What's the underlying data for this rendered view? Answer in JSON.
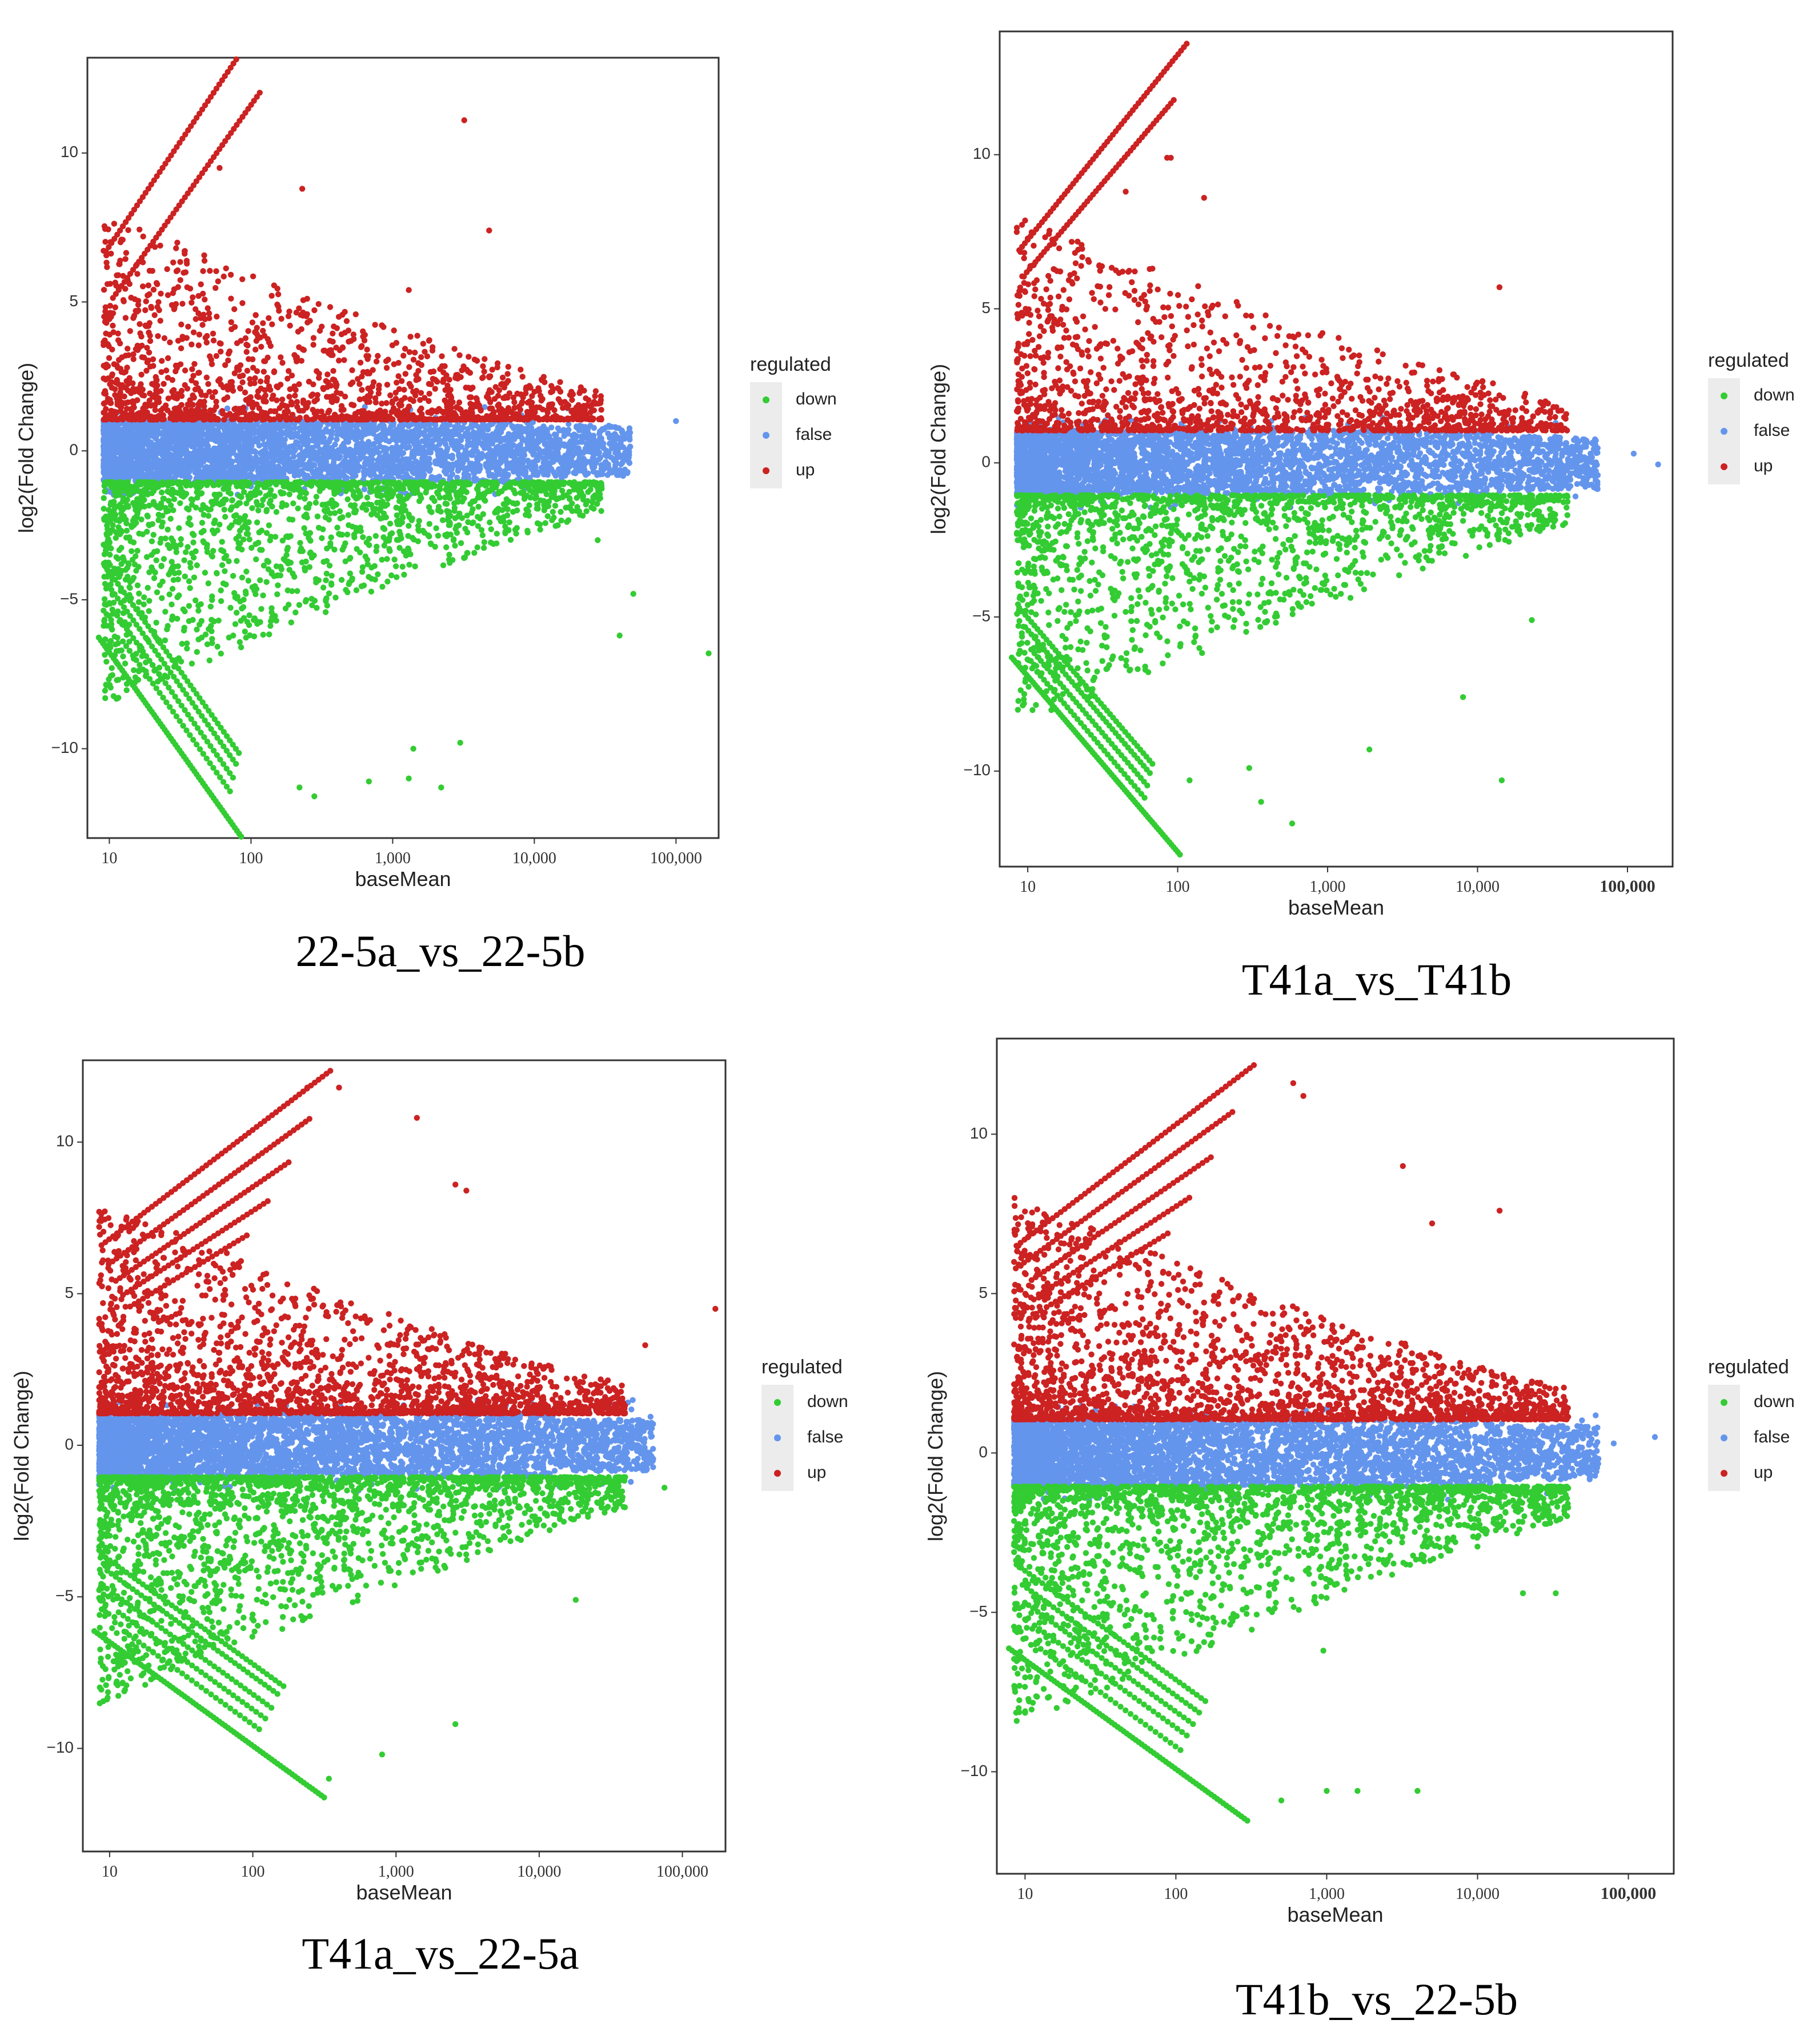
{
  "legend": {
    "title": "regulated",
    "items": [
      {
        "label": "down",
        "color": "#33cc33"
      },
      {
        "label": "false",
        "color": "#6495ed"
      },
      {
        "label": "up",
        "color": "#cc2222"
      }
    ]
  },
  "chart_data": [
    {
      "type": "scatter",
      "caption": "22-5a_vs_22-5b",
      "xlabel": "baseMean",
      "ylabel": "log2(Fold Change)",
      "x_scale": "log10",
      "xlim": [
        7,
        200000
      ],
      "ylim": [
        -13,
        13.2
      ],
      "xticks": [
        {
          "v": 10,
          "label": "10"
        },
        {
          "v": 100,
          "label": "100"
        },
        {
          "v": 1000,
          "label": "1,000"
        },
        {
          "v": 10000,
          "label": "10,000"
        },
        {
          "v": 100000,
          "label": "100,000"
        }
      ],
      "yticks": [
        {
          "v": 10,
          "label": "10"
        },
        {
          "v": 5,
          "label": "5"
        },
        {
          "v": 0,
          "label": "0"
        },
        {
          "v": -5,
          "label": "−5"
        },
        {
          "v": -10,
          "label": "−10"
        }
      ],
      "threshold": 1,
      "x_max_bulk": 30000,
      "upper_lines": [
        6.7,
        4.8
      ],
      "lower_lines": [
        -3.9,
        -4.4,
        -5.0,
        -5.6,
        -6.6
      ],
      "line_slope": 7,
      "line_x_end": 150,
      "outliers": [
        {
          "x": 3200,
          "y": 11.1,
          "g": "up"
        },
        {
          "x": 60,
          "y": 9.5,
          "g": "up"
        },
        {
          "x": 230,
          "y": 8.8,
          "g": "up"
        },
        {
          "x": 4800,
          "y": 7.4,
          "g": "up"
        },
        {
          "x": 1300,
          "y": 5.4,
          "g": "up"
        },
        {
          "x": 100000,
          "y": 1.0,
          "g": "false"
        },
        {
          "x": 170000,
          "y": -6.8,
          "g": "down"
        },
        {
          "x": 40000,
          "y": -6.2,
          "g": "down"
        },
        {
          "x": 50000,
          "y": -4.8,
          "g": "down"
        },
        {
          "x": 3000,
          "y": -9.8,
          "g": "down"
        },
        {
          "x": 2200,
          "y": -11.3,
          "g": "down"
        },
        {
          "x": 1300,
          "y": -11.0,
          "g": "down"
        },
        {
          "x": 280,
          "y": -11.6,
          "g": "down"
        },
        {
          "x": 220,
          "y": -11.3,
          "g": "down"
        },
        {
          "x": 680,
          "y": -11.1,
          "g": "down"
        },
        {
          "x": 1400,
          "y": -10.0,
          "g": "down"
        },
        {
          "x": 28000,
          "y": -3.0,
          "g": "down"
        }
      ],
      "counts": {
        "up": 1500,
        "false": 3800,
        "down": 1700
      }
    },
    {
      "type": "scatter",
      "caption": "T41a_vs_T41b",
      "xlabel": "baseMean",
      "ylabel": "log2(Fold Change)",
      "x_scale": "log10",
      "xlim": [
        6.5,
        200000
      ],
      "ylim": [
        -13.1,
        14
      ],
      "xticks": [
        {
          "v": 10,
          "label": "10"
        },
        {
          "v": 100,
          "label": "100"
        },
        {
          "v": 1000,
          "label": "1,000"
        },
        {
          "v": 10000,
          "label": "10,000"
        },
        {
          "v": 100000,
          "label": "100,000",
          "bold": true
        }
      ],
      "yticks": [
        {
          "v": 10,
          "label": "10"
        },
        {
          "v": 5,
          "label": "5"
        },
        {
          "v": 0,
          "label": "0"
        },
        {
          "v": -5,
          "label": "−5"
        },
        {
          "v": -10,
          "label": "−10"
        }
      ],
      "threshold": 1,
      "x_max_bulk": 40000,
      "upper_lines": [
        6.9,
        5.9
      ],
      "lower_lines": [
        -4.7,
        -5.1,
        -5.6,
        -6.1,
        -6.6
      ],
      "line_slope": 6,
      "line_x_end": 120,
      "outliers": [
        {
          "x": 85,
          "y": 9.9,
          "g": "up"
        },
        {
          "x": 90,
          "y": 9.9,
          "g": "up"
        },
        {
          "x": 150,
          "y": 8.6,
          "g": "up"
        },
        {
          "x": 45,
          "y": 8.8,
          "g": "up"
        },
        {
          "x": 14000,
          "y": 5.7,
          "g": "up"
        },
        {
          "x": 160000,
          "y": -0.05,
          "g": "false"
        },
        {
          "x": 110000,
          "y": 0.3,
          "g": "false"
        },
        {
          "x": 14500,
          "y": -10.3,
          "g": "down"
        },
        {
          "x": 580,
          "y": -11.7,
          "g": "down"
        },
        {
          "x": 360,
          "y": -11.0,
          "g": "down"
        },
        {
          "x": 1900,
          "y": -9.3,
          "g": "down"
        },
        {
          "x": 8000,
          "y": -7.6,
          "g": "down"
        },
        {
          "x": 23000,
          "y": -5.1,
          "g": "down"
        },
        {
          "x": 120,
          "y": -10.3,
          "g": "down"
        },
        {
          "x": 300,
          "y": -9.9,
          "g": "down"
        }
      ],
      "counts": {
        "up": 1400,
        "false": 3800,
        "down": 1600
      }
    },
    {
      "type": "scatter",
      "caption": "T41a_vs_22-5a",
      "xlabel": "baseMean",
      "ylabel": "log2(Fold Change)",
      "x_scale": "log10",
      "xlim": [
        6.5,
        200000
      ],
      "ylim": [
        -13.4,
        12.7
      ],
      "xticks": [
        {
          "v": 10,
          "label": "10"
        },
        {
          "v": 100,
          "label": "100"
        },
        {
          "v": 1000,
          "label": "1,000"
        },
        {
          "v": 10000,
          "label": "10,000"
        },
        {
          "v": 100000,
          "label": "100,000"
        }
      ],
      "yticks": [
        {
          "v": 10,
          "label": "10"
        },
        {
          "v": 5,
          "label": "5"
        },
        {
          "v": 0,
          "label": "0"
        },
        {
          "v": -5,
          "label": "−5"
        },
        {
          "v": -10,
          "label": "−10"
        }
      ],
      "threshold": 1,
      "x_max_bulk": 40000,
      "upper_lines": [
        6.6,
        5.8,
        5.1,
        4.5,
        4.0
      ],
      "lower_lines": [
        -3.6,
        -4.0,
        -4.6,
        -5.1,
        -5.6,
        -6.3
      ],
      "line_slope": 3.6,
      "line_x_end": 370,
      "outliers": [
        {
          "x": 240,
          "y": 11.8,
          "g": "up"
        },
        {
          "x": 400,
          "y": 11.8,
          "g": "up"
        },
        {
          "x": 1400,
          "y": 10.8,
          "g": "up"
        },
        {
          "x": 2600,
          "y": 8.6,
          "g": "up"
        },
        {
          "x": 3100,
          "y": 8.4,
          "g": "up"
        },
        {
          "x": 170000,
          "y": 4.5,
          "g": "up"
        },
        {
          "x": 55000,
          "y": 3.3,
          "g": "up"
        },
        {
          "x": 60000,
          "y": 0.6,
          "g": "false"
        },
        {
          "x": 2600,
          "y": -9.2,
          "g": "down"
        },
        {
          "x": 800,
          "y": -10.2,
          "g": "down"
        },
        {
          "x": 18000,
          "y": -5.1,
          "g": "down"
        },
        {
          "x": 75000,
          "y": -1.4,
          "g": "down"
        },
        {
          "x": 340,
          "y": -11.0,
          "g": "down"
        }
      ],
      "counts": {
        "up": 1900,
        "false": 3900,
        "down": 2000
      }
    },
    {
      "type": "scatter",
      "caption": "T41b_vs_22-5b",
      "xlabel": "baseMean",
      "ylabel": "log2(Fold Change)",
      "x_scale": "log10",
      "xlim": [
        6.5,
        200000
      ],
      "ylim": [
        -13.2,
        13
      ],
      "xticks": [
        {
          "v": 10,
          "label": "10"
        },
        {
          "v": 100,
          "label": "100"
        },
        {
          "v": 1000,
          "label": "1,000"
        },
        {
          "v": 10000,
          "label": "10,000"
        },
        {
          "v": 100000,
          "label": "100,000",
          "bold": true
        }
      ],
      "yticks": [
        {
          "v": 10,
          "label": "10"
        },
        {
          "v": 5,
          "label": "5"
        },
        {
          "v": 0,
          "label": "0"
        },
        {
          "v": -5,
          "label": "−5"
        },
        {
          "v": -10,
          "label": "−10"
        }
      ],
      "threshold": 1,
      "x_max_bulk": 40000,
      "upper_lines": [
        6.5,
        5.8,
        5.1,
        4.5,
        4.0
      ],
      "lower_lines": [
        -3.5,
        -4.0,
        -4.5,
        -5.0,
        -5.6,
        -6.3
      ],
      "line_slope": 3.6,
      "line_x_end": 350,
      "outliers": [
        {
          "x": 600,
          "y": 11.6,
          "g": "up"
        },
        {
          "x": 700,
          "y": 11.2,
          "g": "up"
        },
        {
          "x": 3200,
          "y": 9.0,
          "g": "up"
        },
        {
          "x": 14000,
          "y": 7.6,
          "g": "up"
        },
        {
          "x": 5000,
          "y": 7.2,
          "g": "up"
        },
        {
          "x": 150000,
          "y": 0.5,
          "g": "false"
        },
        {
          "x": 80000,
          "y": 0.3,
          "g": "false"
        },
        {
          "x": 4000,
          "y": -10.6,
          "g": "down"
        },
        {
          "x": 1600,
          "y": -10.6,
          "g": "down"
        },
        {
          "x": 1000,
          "y": -10.6,
          "g": "down"
        },
        {
          "x": 20000,
          "y": -4.4,
          "g": "down"
        },
        {
          "x": 33000,
          "y": -4.4,
          "g": "down"
        },
        {
          "x": 950,
          "y": -6.2,
          "g": "down"
        },
        {
          "x": 500,
          "y": -10.9,
          "g": "down"
        }
      ],
      "counts": {
        "up": 2100,
        "false": 3900,
        "down": 2000
      }
    }
  ]
}
